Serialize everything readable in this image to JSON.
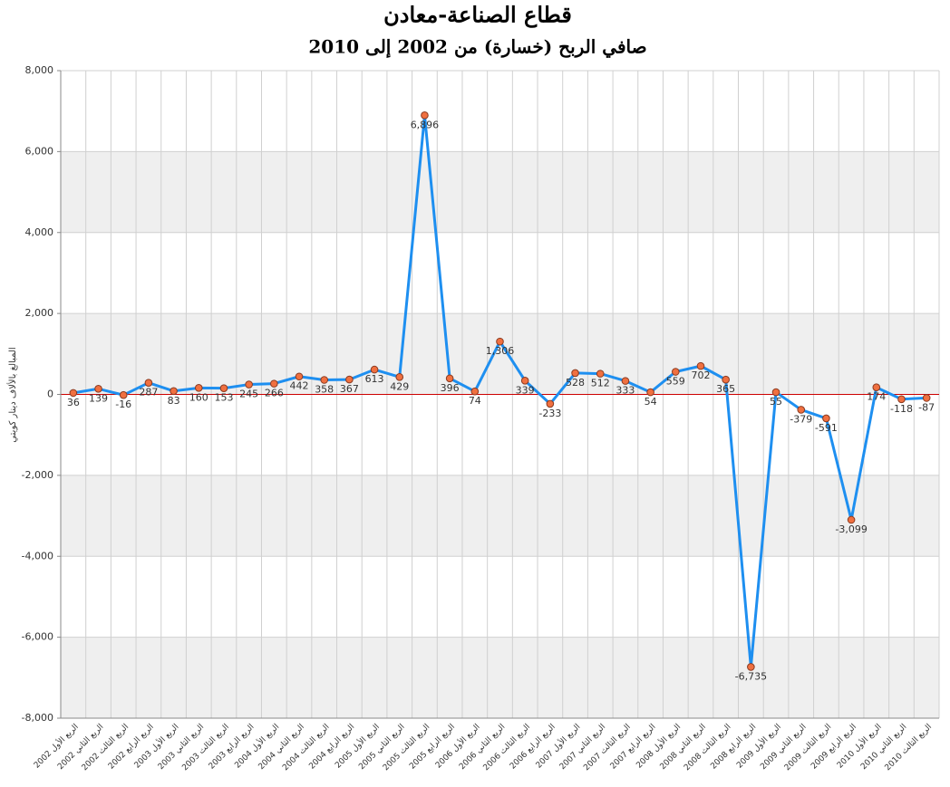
{
  "chart_data": {
    "type": "line",
    "title": "قطاع الصناعة-معادن",
    "subtitle": "صافي الربح (خسارة) من 2002 إلى 2010",
    "y_label": "المبالغ بالألاف دينار كويتي",
    "categories": [
      "الربع الأول 2002",
      "الربع الثاني 2002",
      "الربع الثالث 2002",
      "الربع الرابع 2002",
      "الربع الأول 2003",
      "الربع الثاني 2003",
      "الربع الثالث 2003",
      "الربع الرابع 2003",
      "الربع الأول 2004",
      "الربع الثاني 2004",
      "الربع الثالث 2004",
      "الربع الرابع 2004",
      "الربع الأول 2005",
      "الربع الثاني 2005",
      "الربع الثالث 2005",
      "الربع الرابع 2005",
      "الربع الأول 2006",
      "الربع الثاني 2006",
      "الربع الثالث 2006",
      "الربع الرابع 2006",
      "الربع الأول 2007",
      "الربع الثاني 2007",
      "الربع الثالث 2007",
      "الربع الرابع 2007",
      "الربع الأول 2008",
      "الربع الثاني 2008",
      "الربع الثالث 2008",
      "الربع الرابع 2008",
      "الربع الأول 2009",
      "الربع الثاني 2009",
      "الربع الثالث 2009",
      "الربع الرابع 2009",
      "الربع الأول 2010",
      "الربع الثاني 2010",
      "الربع الثالث 2010"
    ],
    "values": [
      36,
      139,
      -16,
      287,
      83,
      160,
      153,
      245,
      266,
      442,
      358,
      367,
      613,
      429,
      6896,
      396,
      74,
      1306,
      339,
      -233,
      528,
      512,
      333,
      54,
      559,
      702,
      365,
      -6735,
      55,
      -379,
      -591,
      -3099,
      174,
      -118,
      -87
    ],
    "value_labels": [
      "36",
      "139",
      "-16",
      "287",
      "83",
      "160",
      "153",
      "245",
      "266",
      "442",
      "358",
      "367",
      "613",
      "429",
      "6,896",
      "396",
      "74",
      "1,306",
      "339",
      "-233",
      "528",
      "512",
      "333",
      "54",
      "559",
      "702",
      "365",
      "-6,735",
      "55",
      "-379",
      "-591",
      "-3,099",
      "174",
      "-118",
      "-87"
    ],
    "color": "#1e8ff0",
    "marker_color": "#f07040",
    "zero_line_color": "#cc0000",
    "ylim": [
      -8000,
      8000
    ],
    "yticks": [
      {
        "value": -8000,
        "label": "-8,000"
      },
      {
        "value": -6000,
        "label": "-6,000"
      },
      {
        "value": -4000,
        "label": "-4,000"
      },
      {
        "value": -2000,
        "label": "-2,000"
      },
      0,
      {
        "value": 2000,
        "label": "2,000"
      },
      {
        "value": 4000,
        "label": "4,000"
      },
      {
        "value": 6000,
        "label": "6,000"
      },
      {
        "value": 8000,
        "label": "8,000"
      }
    ],
    "grid": true
  }
}
